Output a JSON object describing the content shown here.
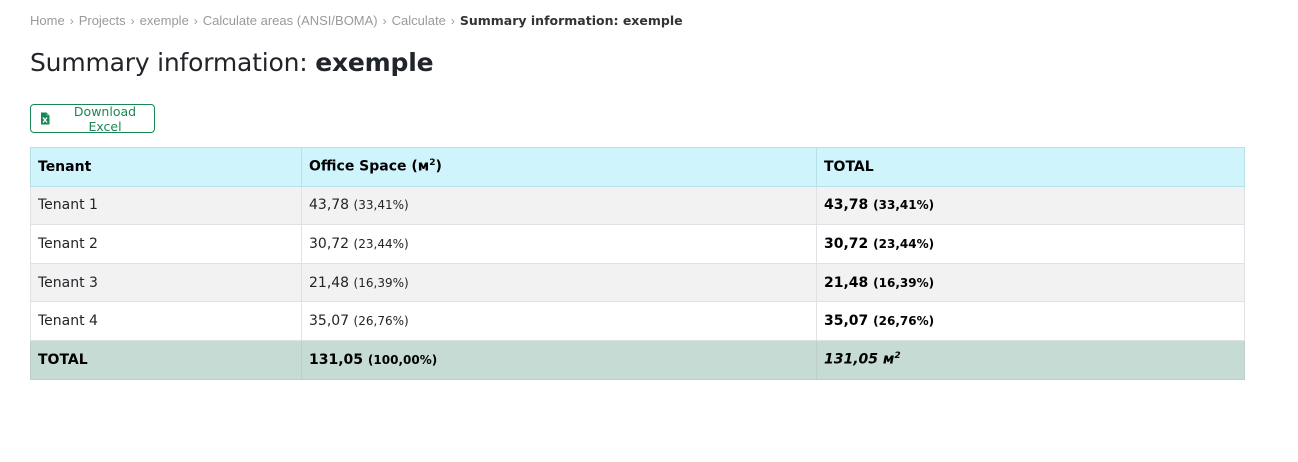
{
  "breadcrumb": {
    "items": [
      "Home",
      "Projects",
      "exemple",
      "Calculate areas (ANSI/BOMA)",
      "Calculate"
    ],
    "separator": "›",
    "current": "Summary information: exemple"
  },
  "title": {
    "prefix": "Summary information: ",
    "name": "exemple"
  },
  "download_button": {
    "label": "Download Excel",
    "icon": "file-excel-icon",
    "color": "#198754"
  },
  "table": {
    "headers": {
      "tenant": "Tenant",
      "office_space": "Office Space (м",
      "office_space_sup": "2",
      "office_space_close": ")",
      "total": "TOTAL"
    },
    "rows": [
      {
        "tenant": "Tenant 1",
        "office": "43,78",
        "office_pct": "(33,41%)",
        "total": "43,78",
        "total_pct": "(33,41%)"
      },
      {
        "tenant": "Tenant 2",
        "office": "30,72",
        "office_pct": "(23,44%)",
        "total": "30,72",
        "total_pct": "(23,44%)"
      },
      {
        "tenant": "Tenant 3",
        "office": "21,48",
        "office_pct": "(16,39%)",
        "total": "21,48",
        "total_pct": "(16,39%)"
      },
      {
        "tenant": "Tenant 4",
        "office": "35,07",
        "office_pct": "(26,76%)",
        "total": "35,07",
        "total_pct": "(26,76%)"
      }
    ],
    "footer": {
      "label": "TOTAL",
      "office": "131,05",
      "office_pct": "(100,00%)",
      "total": "131,05 м",
      "total_sup": "2"
    },
    "colors": {
      "header_bg": "#cff4fc",
      "footer_bg": "#c6dbd4",
      "stripe_bg": "#f2f2f2"
    }
  }
}
